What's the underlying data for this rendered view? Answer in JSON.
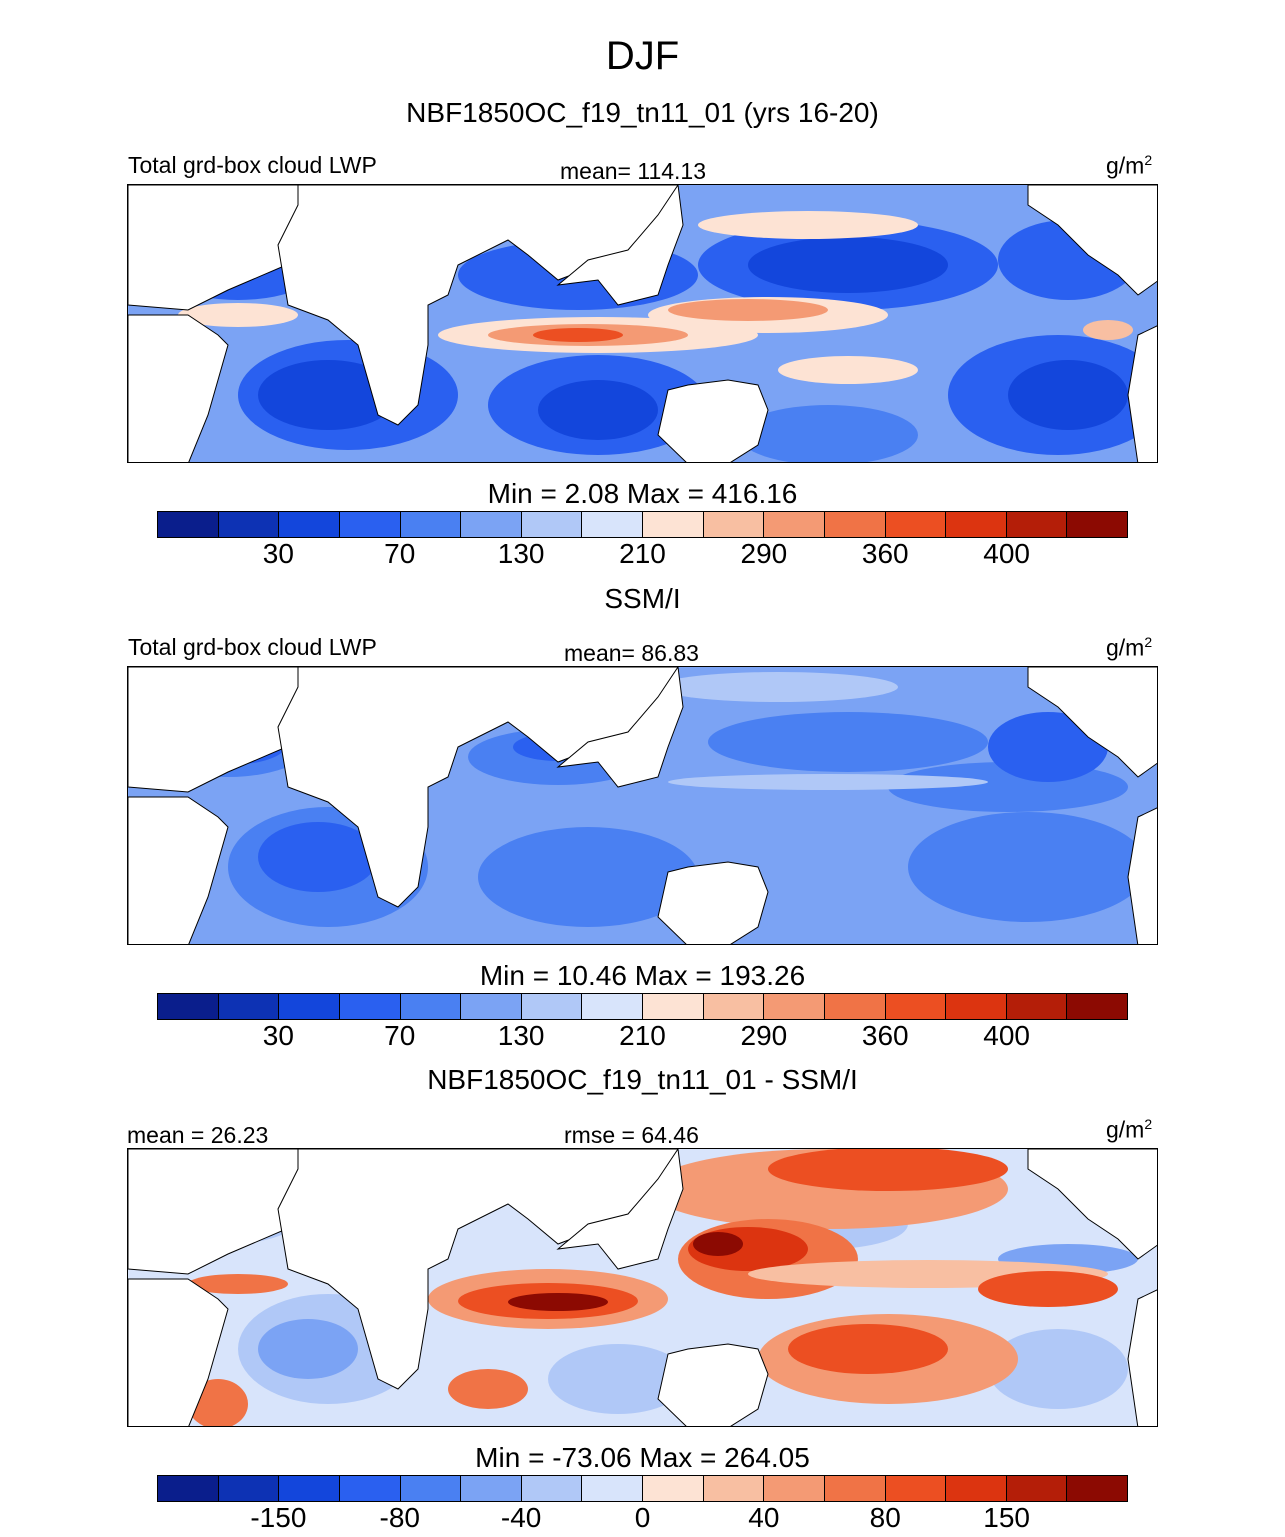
{
  "figure": {
    "title": "DJF",
    "colors": {
      "blue_ramp": [
        "#0a1e8c",
        "#0d32b4",
        "#1346dc",
        "#2a60f0",
        "#4a80f2",
        "#7ba3f4",
        "#b0c8f7",
        "#d8e4fb"
      ],
      "red_ramp": [
        "#fde3d4",
        "#f8bfa2",
        "#f49a74",
        "#f07346",
        "#ec4f22",
        "#dc3410",
        "#b41e08",
        "#8c0a02"
      ],
      "land": "#ffffff",
      "coast": "#000000"
    }
  },
  "panels": [
    {
      "title": "NBF1850OC_f19_tn11_01 (yrs 16-20)",
      "left_label": "Total grd-box cloud LWP",
      "center_label": "mean= 114.13",
      "units": "g/m",
      "units_sup": "2",
      "minmax": "Min =   2.08 Max = 416.16",
      "colorbar_ticks": [
        "30",
        "70",
        "130",
        "210",
        "290",
        "360",
        "400"
      ],
      "field_description": "model liquid water path"
    },
    {
      "title": "SSM/I",
      "left_label": "Total grd-box cloud LWP",
      "center_label": "mean=  86.83",
      "units": "g/m",
      "units_sup": "2",
      "minmax": "Min =  10.46 Max = 193.26",
      "colorbar_ticks": [
        "30",
        "70",
        "130",
        "210",
        "290",
        "360",
        "400"
      ],
      "field_description": "observed liquid water path"
    },
    {
      "title": "NBF1850OC_f19_tn11_01 - SSM/I",
      "left_label": "mean =  26.23",
      "center_label": "rmse =  64.46",
      "units": "g/m",
      "units_sup": "2",
      "minmax": "Min = -73.06 Max = 264.05",
      "colorbar_ticks": [
        "-150",
        "-80",
        "-40",
        "0",
        "40",
        "80",
        "150"
      ],
      "field_description": "difference model minus observation"
    }
  ]
}
